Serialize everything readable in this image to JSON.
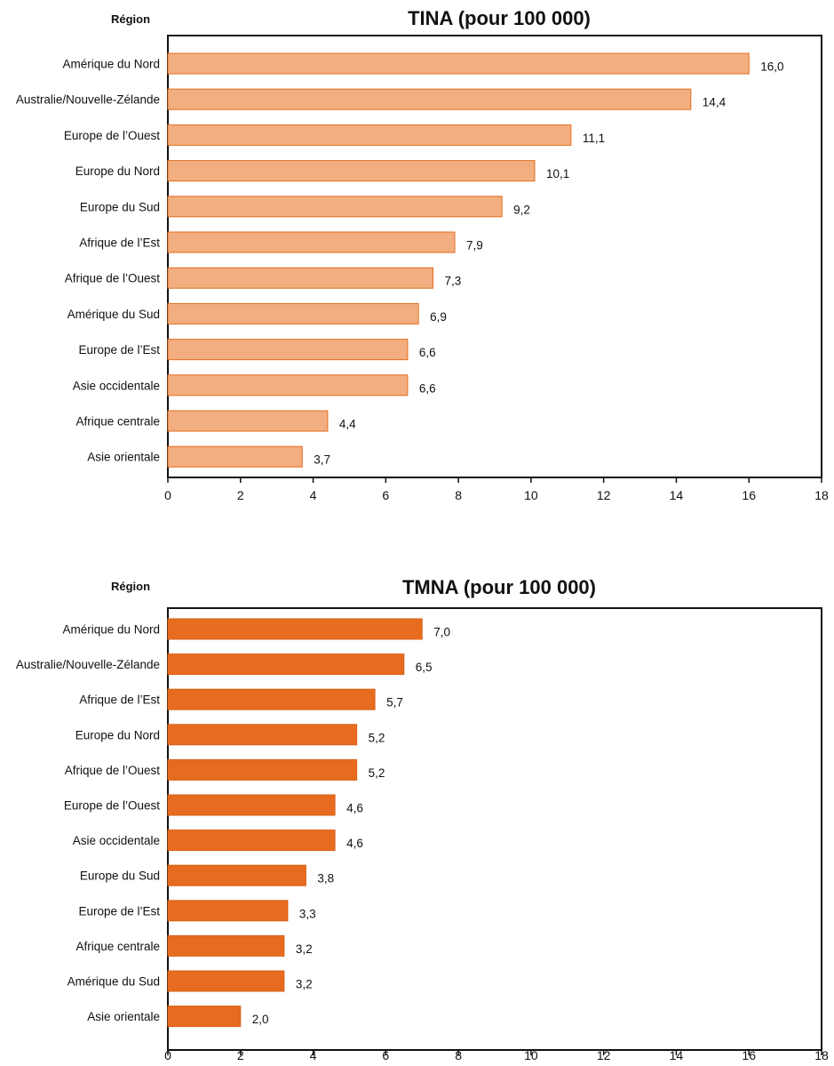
{
  "chart_data": [
    {
      "type": "bar",
      "orientation": "horizontal",
      "title": "TINA (pour 100 000)",
      "ylabel": "Région",
      "categories": [
        "Amérique du Nord",
        "Australie/Nouvelle-Zélande",
        "Europe de l’Ouest",
        "Europe du Nord",
        "Europe du Sud",
        "Afrique de l’Est",
        "Afrique de l’Ouest",
        "Amérique du Sud",
        "Europe de l’Est",
        "Asie occidentale",
        "Afrique centrale",
        "Asie orientale"
      ],
      "values": [
        16.0,
        14.4,
        11.1,
        10.1,
        9.2,
        7.9,
        7.3,
        6.9,
        6.6,
        6.6,
        4.4,
        3.7
      ],
      "value_labels": [
        "16,0",
        "14,4",
        "11,1",
        "10,1",
        "9,2",
        "7,9",
        "7,3",
        "6,9",
        "6,6",
        "6,6",
        "4,4",
        "3,7"
      ],
      "xlim": [
        0,
        18
      ],
      "xticks": [
        "0",
        "2",
        "4",
        "6",
        "8",
        "10",
        "12",
        "14",
        "16",
        "18"
      ],
      "bar_color": "#f2ae80",
      "bar_edge_color": "#e36d1f",
      "grid": false
    },
    {
      "type": "bar",
      "orientation": "horizontal",
      "title": "TMNA (pour 100 000)",
      "ylabel": "Région",
      "categories": [
        "Amérique du Nord",
        "Australie/Nouvelle-Zélande",
        "Afrique de l’Est",
        "Europe du Nord",
        "Afrique de l’Ouest",
        "Europe de l’Ouest",
        "Asie occidentale",
        "Europe du Sud",
        "Europe de l’Est",
        "Afrique centrale",
        "Amérique du Sud",
        "Asie orientale"
      ],
      "values": [
        7.0,
        6.5,
        5.7,
        5.2,
        5.2,
        4.6,
        4.6,
        3.8,
        3.3,
        3.2,
        3.2,
        2.0
      ],
      "value_labels": [
        "7,0",
        "6,5",
        "5,7",
        "5,2",
        "5,2",
        "4,6",
        "4,6",
        "3,8",
        "3,3",
        "3,2",
        "3,2",
        "2,0"
      ],
      "xlim": [
        0,
        18
      ],
      "xticks": [
        "0",
        "2",
        "4",
        "6",
        "8",
        "10",
        "12",
        "14",
        "16",
        "18"
      ],
      "bar_color": "#e86c1f",
      "bar_edge_color": "#d85f14",
      "grid": false
    }
  ]
}
